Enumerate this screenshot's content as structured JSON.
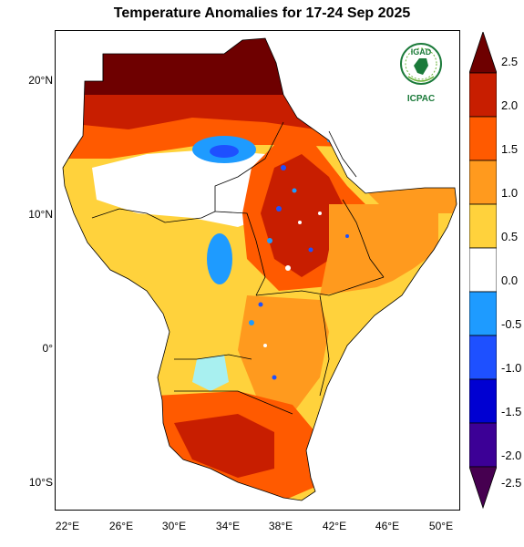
{
  "map": {
    "title": "Temperature Anomalies for 17-24 Sep 2025",
    "lat_labels": [
      "20°N",
      "10°N",
      "0°",
      "10°S"
    ],
    "lon_labels": [
      "22°E",
      "26°E",
      "30°E",
      "34°E",
      "38°E",
      "42°E",
      "46°E",
      "50°E"
    ],
    "colorbar": {
      "labels": [
        "2.5",
        "2.0",
        "1.5",
        "1.0",
        "0.5",
        "0.0",
        "-0.5",
        "-1.0",
        "-1.5",
        "-2.0",
        "-2.5"
      ],
      "colors": [
        "#6e0000",
        "#c81e00",
        "#ff5a00",
        "#ff9a1e",
        "#ffd23c",
        "#ffffff",
        "#1e9bff",
        "#1e50ff",
        "#0000d2",
        "#3c0096",
        "#460050"
      ]
    },
    "logo": {
      "top_text": "IGAD",
      "bottom_text": "ICPAC"
    }
  }
}
